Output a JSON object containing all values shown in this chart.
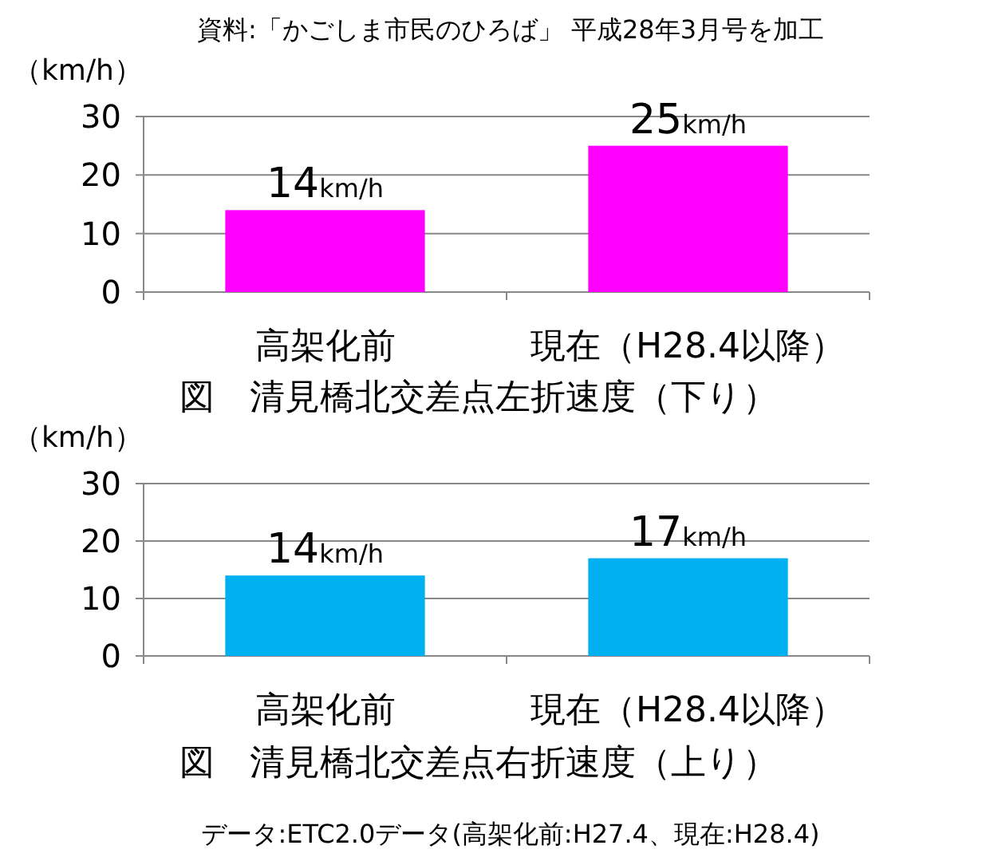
{
  "chart_data": [
    {
      "type": "bar",
      "title": "図　清見橋北交差点左折速度（下り）",
      "ylabel": "（km/h）",
      "categories": [
        "高架化前",
        "現在（H28.4以降）"
      ],
      "values": [
        14,
        25
      ],
      "color": "#ff00ff",
      "value_labels": [
        "14km/h",
        "25km/h"
      ],
      "ylim": [
        0,
        30
      ],
      "yticks": [
        0,
        10,
        20,
        30
      ],
      "grid": "y",
      "annotations": [
        "資料:「かごしま市民のひろば」 平成28年3月号を加工"
      ]
    },
    {
      "type": "bar",
      "title": "図　清見橋北交差点右折速度（上り）",
      "ylabel": "（km/h）",
      "categories": [
        "高架化前",
        "現在（H28.4以降）"
      ],
      "values": [
        14,
        17
      ],
      "color": "#00b0f0",
      "value_labels": [
        "14km/h",
        "17km/h"
      ],
      "ylim": [
        0,
        30
      ],
      "yticks": [
        0,
        10,
        20,
        30
      ],
      "grid": "y",
      "annotations": [
        "データ:ETC2.0データ(高架化前:H27.4、現在:H28.4)"
      ]
    }
  ]
}
